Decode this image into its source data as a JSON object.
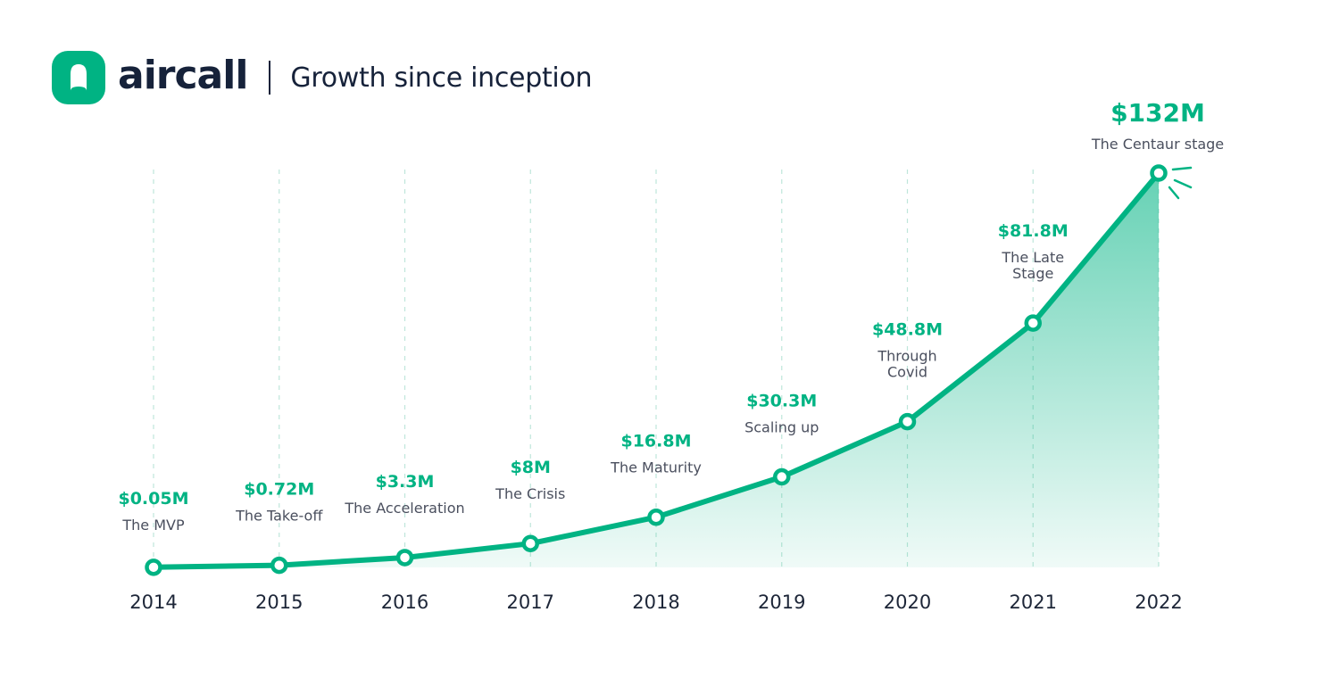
{
  "header": {
    "brand": "aircall",
    "title": "Growth since inception"
  },
  "colors": {
    "accent": "#00b383",
    "text_dark": "#16223a",
    "text_muted": "#4a4f5e",
    "gridline": "#bfe6da"
  },
  "icons": {
    "logo": "aircall-logo-icon",
    "sparkle": "sparkle-burst-icon"
  },
  "chart_data": {
    "type": "area",
    "title": "Growth since inception",
    "x": [
      "2014",
      "2015",
      "2016",
      "2017",
      "2018",
      "2019",
      "2020",
      "2021",
      "2022"
    ],
    "values": [
      0.05,
      0.72,
      3.3,
      8,
      16.8,
      30.3,
      48.8,
      81.8,
      132
    ],
    "value_labels": [
      "$0.05M",
      "$0.72M",
      "$3.3M",
      "$8M",
      "$16.8M",
      "$30.3M",
      "$48.8M",
      "$81.8M",
      "$132M"
    ],
    "annotations": [
      [
        "The MVP"
      ],
      [
        "The Take-off"
      ],
      [
        "The Acceleration"
      ],
      [
        "The Crisis"
      ],
      [
        "The Maturity"
      ],
      [
        "Scaling up"
      ],
      [
        "Through",
        "Covid"
      ],
      [
        "The Late",
        "Stage"
      ],
      [
        "The Centaur stage"
      ]
    ],
    "xlabel": "",
    "ylabel": "",
    "ylim": [
      0,
      132
    ],
    "grid": "vertical dashed",
    "legend": "none"
  }
}
